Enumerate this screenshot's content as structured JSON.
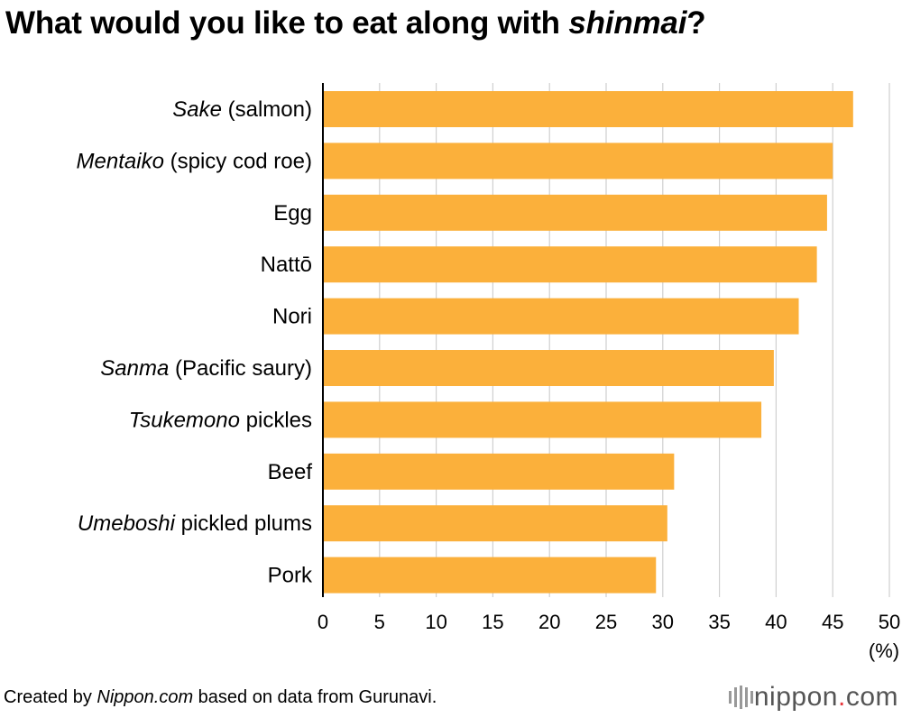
{
  "title": {
    "prefix": "What would you like to eat along with ",
    "italic": "shinmai",
    "suffix": "?"
  },
  "chart_data": {
    "type": "bar",
    "orientation": "horizontal",
    "categories": [
      {
        "italic": "Sake",
        "rest": " (salmon)"
      },
      {
        "italic": "Mentaiko",
        "rest": " (spicy cod roe)"
      },
      {
        "italic": "",
        "rest": "Egg"
      },
      {
        "italic": "",
        "rest": "Nattō"
      },
      {
        "italic": "",
        "rest": "Nori"
      },
      {
        "italic": "Sanma",
        "rest": " (Pacific saury)"
      },
      {
        "italic": "Tsukemono",
        "rest": " pickles"
      },
      {
        "italic": "",
        "rest": "Beef"
      },
      {
        "italic": "Umeboshi",
        "rest": " pickled plums"
      },
      {
        "italic": "",
        "rest": "Pork"
      }
    ],
    "values": [
      46.8,
      45.0,
      44.5,
      43.6,
      42.0,
      39.8,
      38.7,
      31.0,
      30.4,
      29.4
    ],
    "xlim": [
      0,
      50
    ],
    "xticks": [
      0,
      5,
      10,
      15,
      20,
      25,
      30,
      35,
      40,
      45,
      50
    ],
    "xunit": "(%)",
    "grid": true,
    "bar_color": "#fbb03b"
  },
  "footer": {
    "prefix": "Created by ",
    "italic": "Nippon.com",
    "suffix": " based on data from Gurunavi."
  },
  "logo": {
    "name": "nippon",
    "dot": ".",
    "tld": "com"
  }
}
